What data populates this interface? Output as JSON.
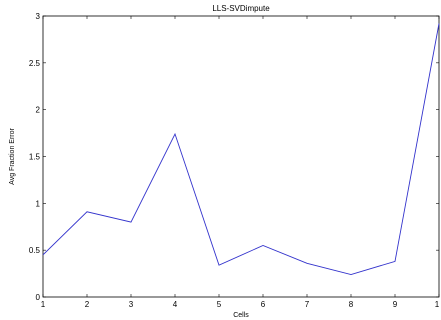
{
  "chart_data": {
    "type": "line",
    "title": "LLS-SVDimpute",
    "xlabel": "Cells",
    "ylabel": "Avg Fraction Error",
    "xlim": [
      1,
      10
    ],
    "ylim": [
      0,
      3
    ],
    "x_ticks": [
      "1",
      "2",
      "3",
      "4",
      "5",
      "6",
      "7",
      "8",
      "9",
      "1"
    ],
    "y_ticks": [
      "0",
      "0.5",
      "1",
      "1.5",
      "2",
      "2.5",
      "3"
    ],
    "grid": false,
    "series": [
      {
        "x": [
          1,
          2,
          3,
          4,
          5,
          6,
          7,
          8,
          9,
          10
        ],
        "values": [
          0.45,
          0.91,
          0.8,
          1.74,
          0.34,
          0.55,
          0.36,
          0.24,
          0.38,
          2.92
        ]
      }
    ],
    "colors": {
      "line": "#3333cc",
      "axis": "#000000"
    }
  }
}
